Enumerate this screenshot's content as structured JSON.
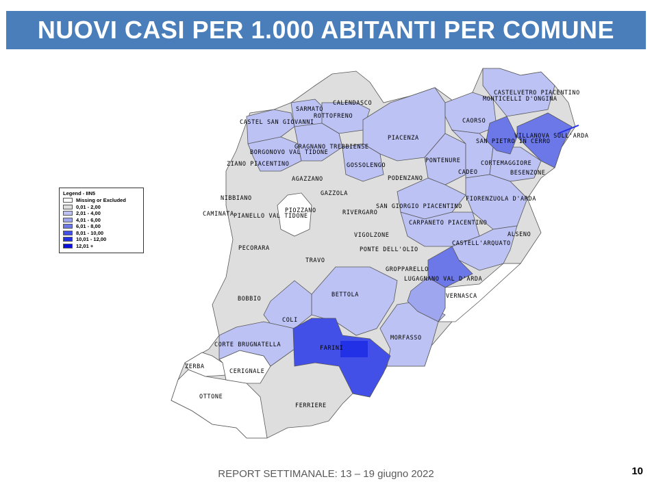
{
  "title": "NUOVI CASI PER 1.000 ABITANTI PER COMUNE",
  "colors": {
    "banner": "#4a7ebb",
    "missing": "#ffffff",
    "c1": "#dedede",
    "c2": "#bcc2f4",
    "c3": "#9ea6f0",
    "c4": "#6c78e8",
    "c5": "#4350e8",
    "c6": "#2230e6",
    "c7": "#0a10dc"
  },
  "legend": {
    "title": "Legend - IIN5",
    "items": [
      {
        "label": "Missing or Excluded",
        "color": "#ffffff"
      },
      {
        "label": "0,01 - 2,00",
        "color": "#dedede"
      },
      {
        "label": "2,01 - 4,00",
        "color": "#bcc2f4"
      },
      {
        "label": "4,01 - 6,00",
        "color": "#9ea6f0"
      },
      {
        "label": "6,01 - 8,00",
        "color": "#6c78e8"
      },
      {
        "label": "8,01 - 10,00",
        "color": "#4350e8"
      },
      {
        "label": "10,01 - 12,00",
        "color": "#2230e6"
      },
      {
        "label": "12,01 +",
        "color": "#0a10dc"
      }
    ]
  },
  "municipalities": [
    {
      "name": "CASTELVETRO PIACENTINO",
      "range": "2,01 - 4,00"
    },
    {
      "name": "MONTICELLI D'ONGINA",
      "range": "2,01 - 4,00"
    },
    {
      "name": "CALENDASCO",
      "range": "0,01 - 2,00"
    },
    {
      "name": "SARMATO",
      "range": "2,01 - 4,00"
    },
    {
      "name": "ROTTOFRENO",
      "range": "2,01 - 4,00"
    },
    {
      "name": "CASTEL SAN GIOVANNI",
      "range": "2,01 - 4,00"
    },
    {
      "name": "CAORSO",
      "range": "2,01 - 4,00"
    },
    {
      "name": "VILLANOVA SULL'ARDA",
      "range": "6,01 - 8,00"
    },
    {
      "name": "SAN PIETRO IN CERRO",
      "range": "6,01 - 8,00"
    },
    {
      "name": "PIACENZA",
      "range": "2,01 - 4,00"
    },
    {
      "name": "GRAGNANO TREBBIENSE",
      "range": "2,01 - 4,00"
    },
    {
      "name": "BORGONOVO VAL TIDONE",
      "range": "2,01 - 4,00"
    },
    {
      "name": "PONTENURE",
      "range": "2,01 - 4,00"
    },
    {
      "name": "CORTEMAGGIORE",
      "range": "2,01 - 4,00"
    },
    {
      "name": "ZIANO PIACENTINO",
      "range": "0,01 - 2,00"
    },
    {
      "name": "GOSSOLENGO",
      "range": "2,01 - 4,00"
    },
    {
      "name": "CADEO",
      "range": "2,01 - 4,00"
    },
    {
      "name": "BESENZONE",
      "range": "0,01 - 2,00"
    },
    {
      "name": "AGAZZANO",
      "range": "0,01 - 2,00"
    },
    {
      "name": "PODENZANO",
      "range": "0,01 - 2,00"
    },
    {
      "name": "GAZZOLA",
      "range": "0,01 - 2,00"
    },
    {
      "name": "FIORENZUOLA D'ARDA",
      "range": "2,01 - 4,00"
    },
    {
      "name": "NIBBIANO",
      "range": "0,01 - 2,00"
    },
    {
      "name": "SAN GIORGIO PIACENTINO",
      "range": "2,01 - 4,00"
    },
    {
      "name": "PIOZZANO",
      "range": "Missing or Excluded"
    },
    {
      "name": "RIVERGARO",
      "range": "0,01 - 2,00"
    },
    {
      "name": "CAMINATA",
      "range": "0,01 - 2,00"
    },
    {
      "name": "PIANELLO VAL TIDONE",
      "range": "0,01 - 2,00"
    },
    {
      "name": "CARPANETO PIACENTINO",
      "range": "2,01 - 4,00"
    },
    {
      "name": "VIGOLZONE",
      "range": "0,01 - 2,00"
    },
    {
      "name": "ALSENO",
      "range": "0,01 - 2,00"
    },
    {
      "name": "CASTELL'ARQUATO",
      "range": "2,01 - 4,00"
    },
    {
      "name": "PECORARA",
      "range": "0,01 - 2,00"
    },
    {
      "name": "PONTE DELL'OLIO",
      "range": "0,01 - 2,00"
    },
    {
      "name": "TRAVO",
      "range": "0,01 - 2,00"
    },
    {
      "name": "GROPPARELLO",
      "range": "6,01 - 8,00"
    },
    {
      "name": "LUGAGNANO VAL D'ARDA",
      "range": "4,01 - 6,00"
    },
    {
      "name": "BOBBIO",
      "range": "0,01 - 2,00"
    },
    {
      "name": "BETTOLA",
      "range": "2,01 - 4,00"
    },
    {
      "name": "VERNASCA",
      "range": "Missing or Excluded"
    },
    {
      "name": "COLI",
      "range": "2,01 - 4,00"
    },
    {
      "name": "MORFASSO",
      "range": "2,01 - 4,00"
    },
    {
      "name": "CORTE BRUGNATELLA",
      "range": "2,01 - 4,00"
    },
    {
      "name": "FARINI",
      "range": "8,01 - 10,00"
    },
    {
      "name": "ZERBA",
      "range": "Missing or Excluded"
    },
    {
      "name": "CERIGNALE",
      "range": "Missing or Excluded"
    },
    {
      "name": "OTTONE",
      "range": "Missing or Excluded"
    },
    {
      "name": "FERRIERE",
      "range": "0,01 - 2,00"
    }
  ],
  "footer": "REPORT SETTIMANALE: 13 – 19 giugno 2022",
  "page_number": "10"
}
